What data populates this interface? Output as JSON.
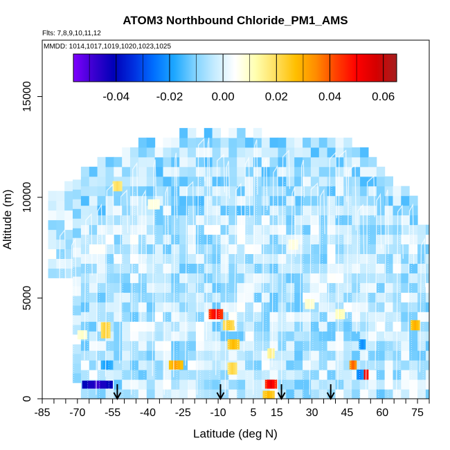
{
  "chart_data": {
    "type": "heatmap",
    "title": "ATOM3 Northbound Chloride_PM1_AMS",
    "subtitle_flights": "Flts: 7,8,9,10,11,12",
    "subtitle_dates": "MMDD: 1014,1017,1019,1020,1023,1025",
    "xlabel": "Latitude (deg N)",
    "ylabel": "Altitude (m)",
    "xlim": [
      -85,
      80
    ],
    "ylim": [
      0,
      17800
    ],
    "x_ticks": [
      -85,
      -70,
      -55,
      -40,
      -25,
      -10,
      5,
      15,
      30,
      45,
      60,
      75
    ],
    "x_ticks_minor": [
      -80,
      -75,
      -65,
      -60,
      -50,
      -45,
      -35,
      -30,
      -20,
      -15,
      -5,
      0,
      10,
      20,
      25,
      35,
      40,
      50,
      55,
      65,
      70,
      80
    ],
    "y_ticks": [
      0,
      5000,
      10000,
      15000
    ],
    "colorbar": {
      "range": [
        -0.056,
        0.065
      ],
      "ticks": [
        -0.04,
        -0.02,
        0.0,
        0.02,
        0.04,
        0.06
      ],
      "tick_labels": [
        "-0.04",
        "-0.02",
        "0.00",
        "0.02",
        "0.04",
        "0.06"
      ],
      "colors": [
        "#7f00ff",
        "#3a00d0",
        "#0000b8",
        "#0030e0",
        "#0070ff",
        "#1ea8ff",
        "#7fd2ff",
        "#c6ecff",
        "#ffffff",
        "#ffffb0",
        "#ffe060",
        "#ffbf00",
        "#ff8c00",
        "#ff4000",
        "#ff0000",
        "#d40000",
        "#a51f1f"
      ]
    },
    "profile_arrows_lat": [
      -53,
      -9,
      17,
      38
    ],
    "coverage_top": [
      {
        "lat": -82,
        "alt": 10400
      },
      {
        "lat": -72,
        "alt": 10600
      },
      {
        "lat": -65,
        "alt": 11500
      },
      {
        "lat": -60,
        "alt": 12000
      },
      {
        "lat": -50,
        "alt": 12400
      },
      {
        "lat": -35,
        "alt": 12700
      },
      {
        "lat": -20,
        "alt": 13300
      },
      {
        "lat": 0,
        "alt": 13300
      },
      {
        "lat": 20,
        "alt": 12900
      },
      {
        "lat": 40,
        "alt": 12900
      },
      {
        "lat": 55,
        "alt": 12000
      },
      {
        "lat": 62,
        "alt": 11300
      },
      {
        "lat": 68,
        "alt": 10400
      },
      {
        "lat": 74,
        "alt": 9900
      },
      {
        "lat": 78,
        "alt": 8500
      }
    ],
    "anomalies": [
      {
        "lat_min": -68,
        "lat_max": -55,
        "alt_min": 500,
        "alt_max": 900,
        "value": -0.048
      },
      {
        "lat_min": -60,
        "lat_max": -55,
        "alt_min": 1450,
        "alt_max": 1900,
        "value": -0.02
      },
      {
        "lat_min": -60,
        "lat_max": -56,
        "alt_min": 3000,
        "alt_max": 3800,
        "value": 0.024
      },
      {
        "lat_min": -55,
        "lat_max": -51,
        "alt_min": 10300,
        "alt_max": 10800,
        "value": 0.02
      },
      {
        "lat_min": -31,
        "lat_max": -25,
        "alt_min": 1450,
        "alt_max": 1900,
        "value": 0.032
      },
      {
        "lat_min": -14,
        "lat_max": -8,
        "alt_min": 3950,
        "alt_max": 4450,
        "value": 0.052
      },
      {
        "lat_min": -8,
        "lat_max": -3,
        "alt_min": 3400,
        "alt_max": 3900,
        "value": 0.024
      },
      {
        "lat_min": -6,
        "lat_max": -1,
        "alt_min": 2450,
        "alt_max": 2950,
        "value": 0.028
      },
      {
        "lat_min": -6,
        "lat_max": -2,
        "alt_min": 1200,
        "alt_max": 1800,
        "value": 0.022
      },
      {
        "lat_min": 10,
        "lat_max": 15,
        "alt_min": 500,
        "alt_max": 950,
        "value": 0.054
      },
      {
        "lat_min": 9,
        "lat_max": 14,
        "alt_min": 0,
        "alt_max": 400,
        "value": 0.028
      },
      {
        "lat_min": 11,
        "lat_max": 14,
        "alt_min": 2000,
        "alt_max": 2500,
        "value": 0.016
      },
      {
        "lat_min": 46,
        "lat_max": 49,
        "alt_min": 1450,
        "alt_max": 1900,
        "value": 0.04
      },
      {
        "lat_min": 52,
        "lat_max": 54,
        "alt_min": 950,
        "alt_max": 1450,
        "value": 0.056
      },
      {
        "lat_min": 49,
        "lat_max": 52,
        "alt_min": 950,
        "alt_max": 1450,
        "value": -0.024
      },
      {
        "lat_min": 50,
        "lat_max": 53,
        "alt_min": 2450,
        "alt_max": 2950,
        "value": -0.022
      },
      {
        "lat_min": 72,
        "lat_max": 76,
        "alt_min": 3400,
        "alt_max": 3900,
        "value": 0.03
      },
      {
        "lat_min": 27,
        "lat_max": 31,
        "alt_min": 4450,
        "alt_max": 4950,
        "value": 0.01
      },
      {
        "lat_min": 40,
        "lat_max": 44,
        "alt_min": 3950,
        "alt_max": 4450,
        "value": 0.012
      },
      {
        "lat_min": -70,
        "lat_max": -66,
        "alt_min": 2950,
        "alt_max": 3400,
        "value": 0.01
      },
      {
        "lat_min": 20,
        "lat_max": 24,
        "alt_min": 7400,
        "alt_max": 7900,
        "value": 0.008
      },
      {
        "lat_min": -40,
        "lat_max": -35,
        "alt_min": 9400,
        "alt_max": 9900,
        "value": 0.008
      }
    ]
  }
}
